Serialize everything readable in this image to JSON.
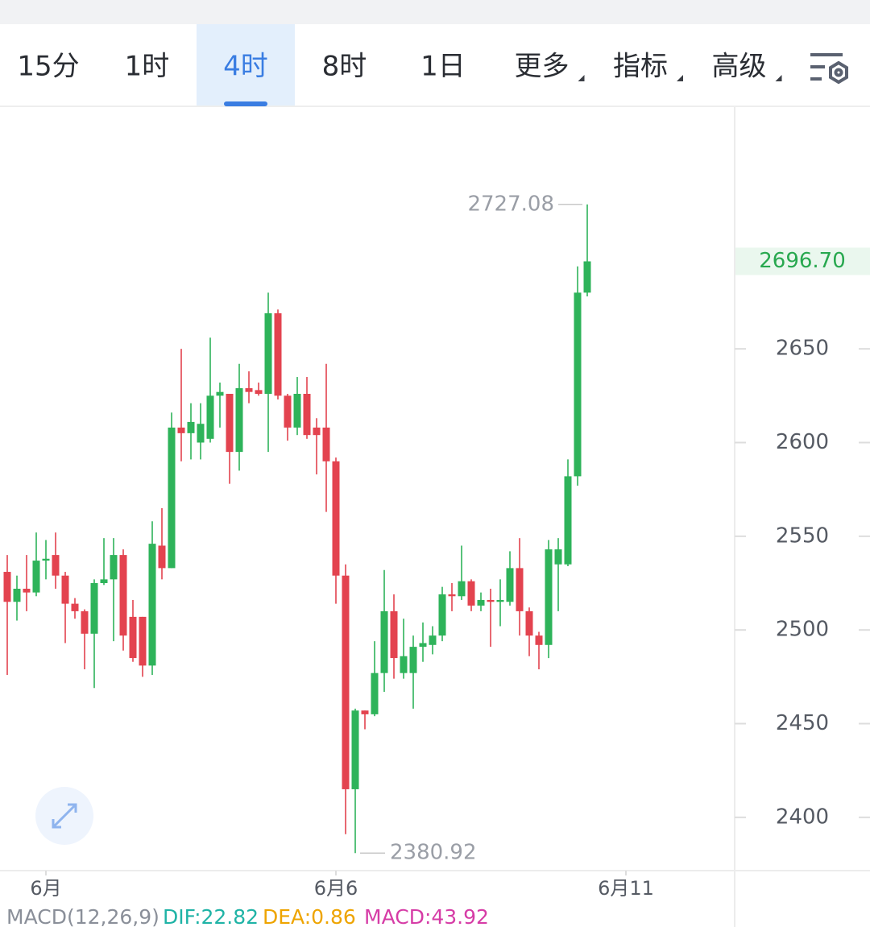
{
  "toolbar": {
    "tabs": [
      "15分",
      "1时",
      "4时",
      "8时",
      "1日",
      "更多",
      "指标",
      "高级"
    ],
    "selected": 2
  },
  "chart_data": {
    "type": "candlestick",
    "open": [
      2531,
      2515,
      2522,
      2520,
      2537,
      2540,
      2529,
      2514,
      2510,
      2498,
      2525,
      2527,
      2540,
      2507,
      2507,
      2481,
      2545,
      2533,
      2608,
      2605,
      2600,
      2602,
      2625,
      2626,
      2595,
      2629,
      2628,
      2626,
      2669,
      2625,
      2608,
      2626,
      2608,
      2608,
      2590,
      2529,
      2415,
      2457,
      2455,
      2477,
      2510,
      2477,
      2477,
      2491,
      2492,
      2497,
      2519,
      2518,
      2526,
      2513,
      2516,
      2515,
      2515,
      2533,
      2510,
      2497,
      2492,
      2535,
      2535,
      2582,
      2680
    ],
    "high": [
      2540,
      2529,
      2540,
      2552,
      2548,
      2552,
      2531,
      2517,
      2511,
      2527,
      2549,
      2549,
      2543,
      2516,
      2507,
      2558,
      2565,
      2616,
      2650,
      2621,
      2621,
      2656,
      2632,
      2626,
      2642,
      2638,
      2632,
      2680,
      2671,
      2626,
      2635,
      2635,
      2613,
      2642,
      2592,
      2535,
      2458,
      2457,
      2494,
      2532,
      2519,
      2506,
      2497,
      2504,
      2502,
      2523,
      2525,
      2545,
      2527,
      2520,
      2522,
      2527,
      2542,
      2549,
      2512,
      2499,
      2548,
      2549,
      2591,
      2694,
      2727.08
    ],
    "low": [
      2476,
      2505,
      2510,
      2518,
      2527,
      2522,
      2493,
      2506,
      2479,
      2469,
      2524,
      2494,
      2489,
      2483,
      2475,
      2476,
      2527,
      2533,
      2590,
      2591,
      2591,
      2600,
      2608,
      2578,
      2585,
      2621,
      2625,
      2595,
      2623,
      2601,
      2604,
      2602,
      2583,
      2563,
      2514,
      2391,
      2380.92,
      2447,
      2454,
      2467,
      2474,
      2474,
      2458,
      2483,
      2487,
      2494,
      2510,
      2516,
      2510,
      2510,
      2491,
      2502,
      2513,
      2497,
      2486,
      2479,
      2485,
      2510,
      2534,
      2577,
      2678
    ],
    "close": [
      2515,
      2522,
      2520,
      2537,
      2538,
      2529,
      2514,
      2510,
      2498,
      2525,
      2527,
      2540,
      2497,
      2485,
      2481,
      2546,
      2533,
      2608,
      2605,
      2611,
      2610,
      2625,
      2627,
      2595,
      2629,
      2627,
      2626,
      2669,
      2625,
      2608,
      2626,
      2604,
      2604,
      2590,
      2529,
      2415,
      2457,
      2455,
      2477,
      2510,
      2485,
      2486,
      2491,
      2493,
      2497,
      2519,
      2518,
      2526,
      2513,
      2516,
      2515,
      2516,
      2533,
      2510,
      2497,
      2492,
      2543,
      2543,
      2582,
      2680,
      2696.7
    ],
    "up_color": "#2eb35a",
    "down_color": "#e3434f",
    "xlim": [
      -0.75,
      75.25
    ],
    "xticks": [
      {
        "value": 4,
        "label": "6月"
      },
      {
        "value": 34,
        "label": "6月6"
      },
      {
        "value": 64,
        "label": "6月11"
      }
    ],
    "ylim": [
      2372,
      2779
    ],
    "yticks": [
      2400,
      2450,
      2500,
      2550,
      2600,
      2650
    ],
    "current_price": {
      "value": 2696.7,
      "label": "2696.70"
    },
    "indicator": {
      "name": "MACD(12,26,9)",
      "dif": "DIF:22.82",
      "dea": "DEA:0.86",
      "macd": "MACD:43.92"
    }
  }
}
